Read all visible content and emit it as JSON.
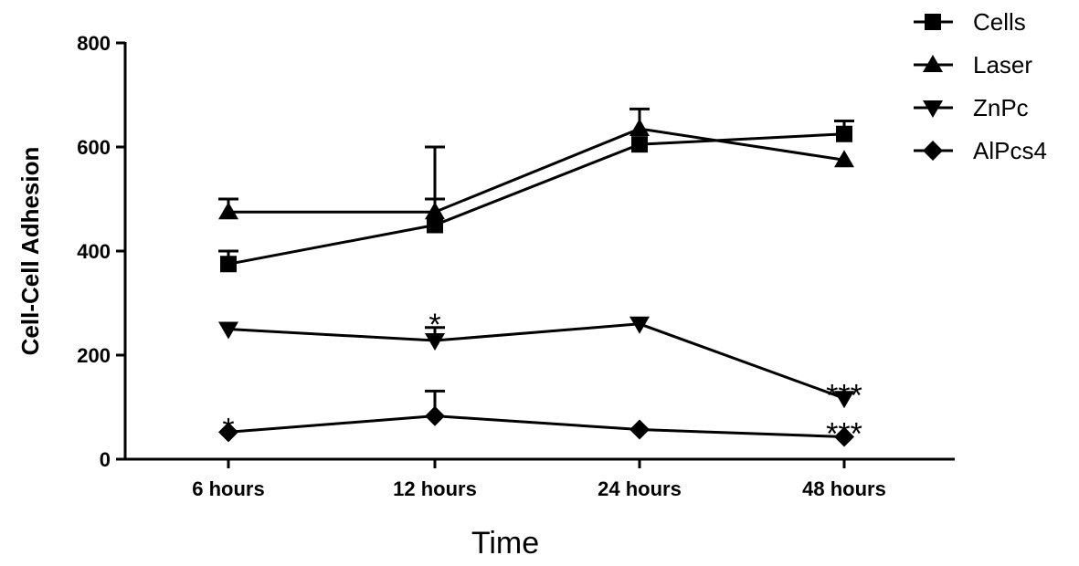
{
  "chart_data": {
    "type": "line",
    "xlabel": "Time",
    "ylabel": "Cell-Cell Adhesion",
    "categories": [
      "6 hours",
      "12 hours",
      "24 hours",
      "48 hours"
    ],
    "ylim": [
      0,
      800
    ],
    "yticks": [
      "0",
      "200",
      "400",
      "600",
      "800"
    ],
    "ytick_values": [
      0,
      200,
      400,
      600,
      800
    ],
    "grid": false,
    "legend_position": "top-right",
    "series": [
      {
        "name": "Cells",
        "marker": "square",
        "values": [
          375,
          450,
          605,
          625
        ],
        "error": [
          25,
          50,
          0,
          25
        ]
      },
      {
        "name": "Laser",
        "marker": "triangle-up",
        "values": [
          475,
          475,
          635,
          575
        ],
        "error": [
          25,
          125,
          38,
          0
        ]
      },
      {
        "name": "ZnPc",
        "marker": "triangle-down",
        "values": [
          250,
          228,
          260,
          117
        ],
        "error": [
          0,
          25,
          0,
          0
        ]
      },
      {
        "name": "AlPcs4",
        "marker": "diamond",
        "values": [
          52,
          83,
          57,
          43
        ],
        "error": [
          0,
          48,
          0,
          0
        ]
      }
    ],
    "annotations": [
      {
        "text": "*",
        "series": "ZnPc",
        "category": "12 hours"
      },
      {
        "text": "***",
        "series": "ZnPc",
        "category": "48 hours"
      },
      {
        "text": "*",
        "series": "AlPcs4",
        "category": "6 hours"
      },
      {
        "text": "***",
        "series": "AlPcs4",
        "category": "48 hours"
      }
    ],
    "colors": {
      "line": "#000000",
      "background": "#ffffff"
    }
  }
}
